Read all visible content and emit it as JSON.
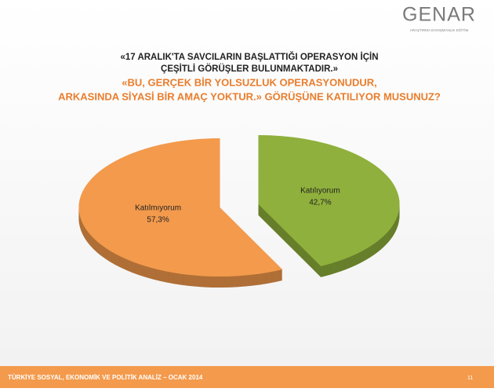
{
  "brand": {
    "name": "GENAR",
    "tagline": "ARAŞTIRMA DANIŞMANLIK EĞİTİM"
  },
  "chart_data": {
    "type": "pie",
    "title": [
      "«17 ARALIK'TA SAVCILARIN BAŞLATTIĞI OPERASYON İÇİN",
      "ÇEŞİTLİ GÖRÜŞLER BULUNMAKTADIR.»"
    ],
    "subtitle": [
      "«BU, GERÇEK BİR YOLSUZLUK OPERASYONUDUR,",
      "ARKASINDA SİYASİ BİR AMAÇ YOKTUR.» GÖRÜŞÜNE KATILIYOR MUSUNUZ?"
    ],
    "categories": [
      "Katılıyorum",
      "Katılmıyorum"
    ],
    "values": [
      42.7,
      57.3
    ],
    "value_labels": [
      "42,7%",
      "57,3%"
    ],
    "colors": [
      "#8fb03c",
      "#f39a4c"
    ]
  },
  "footer": {
    "text": "TÜRKİYE SOSYAL, EKONOMİK VE POLİTİK ANALİZ – OCAK 2014",
    "page": 11
  }
}
